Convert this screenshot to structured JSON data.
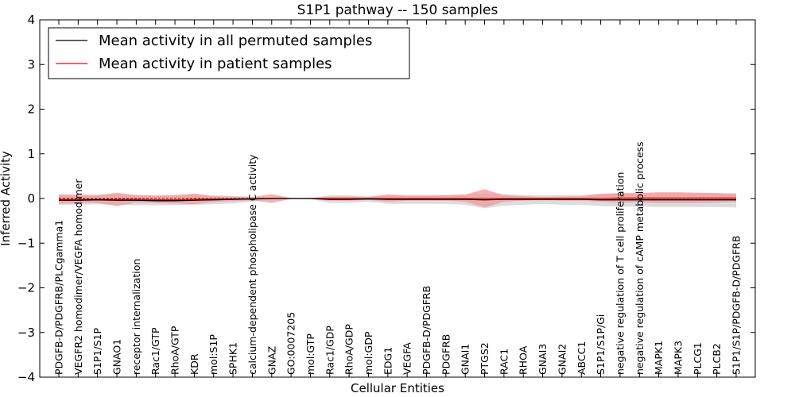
{
  "chart_data": {
    "type": "line",
    "title": "S1P1 pathway -- 150 samples",
    "xlabel": "Cellular Entities",
    "ylabel": "Inferred Activity",
    "ylim": [
      -4,
      4
    ],
    "yticks": [
      -4,
      -3,
      -2,
      -1,
      0,
      1,
      2,
      3,
      4
    ],
    "ytick_labels": [
      "−4",
      "−3",
      "−2",
      "−1",
      "0",
      "1",
      "2",
      "3",
      "4"
    ],
    "grid": false,
    "legend_position": "top-left",
    "categories": [
      "PDGFB-D/PDGFRB/PLCgamma1",
      "VEGFR2 homodimer/VEGFA homodimer",
      "S1P1/S1P",
      "GNAO1",
      "receptor internalization",
      "Rac1/GTP",
      "RhoA/GTP",
      "KDR",
      "mol:S1P",
      "SPHK1",
      "calcium-dependent phospholipase C activity",
      "GNAZ",
      "GO:0007205",
      "mol:GTP",
      "Rac1/GDP",
      "RhoA/GDP",
      "mol:GDP",
      "EDG1",
      "VEGFA",
      "PDGFB-D/PDGFRB",
      "PDGFRB",
      "GNAI1",
      "PTGS2",
      "RAC1",
      "RHOA",
      "GNAI3",
      "GNAI2",
      "ABCC1",
      "S1P1/S1P/Gi",
      "negative regulation of T cell proliferation",
      "negative regulation of cAMP metabolic process",
      "MAPK1",
      "MAPK3",
      "PLCG1",
      "PLCB2",
      "S1P1/S1P/PDGFB-D/PDGFRB"
    ],
    "series": [
      {
        "name": "Mean activity in all permuted samples",
        "color": "#000000",
        "values": [
          -0.04,
          -0.04,
          -0.03,
          -0.04,
          -0.04,
          -0.05,
          -0.05,
          -0.04,
          -0.03,
          -0.02,
          -0.01,
          0.0,
          0.0,
          0.0,
          -0.02,
          -0.02,
          -0.01,
          -0.02,
          -0.02,
          -0.02,
          -0.02,
          -0.02,
          -0.03,
          -0.02,
          -0.02,
          -0.02,
          -0.02,
          -0.02,
          -0.03,
          -0.03,
          -0.03,
          -0.03,
          -0.03,
          -0.03,
          -0.03,
          -0.03
        ],
        "band_lower": [
          -0.14,
          -0.14,
          -0.13,
          -0.14,
          -0.15,
          -0.15,
          -0.15,
          -0.14,
          -0.13,
          -0.11,
          -0.07,
          -0.02,
          -0.01,
          -0.01,
          -0.1,
          -0.1,
          -0.07,
          -0.12,
          -0.12,
          -0.12,
          -0.12,
          -0.14,
          -0.22,
          -0.16,
          -0.14,
          -0.12,
          -0.14,
          -0.14,
          -0.17,
          -0.18,
          -0.18,
          -0.19,
          -0.19,
          -0.19,
          -0.19,
          -0.2
        ],
        "band_upper": [
          0.1,
          0.1,
          0.09,
          0.1,
          0.09,
          0.08,
          0.08,
          0.09,
          0.07,
          0.06,
          0.04,
          0.02,
          0.01,
          0.01,
          0.07,
          0.07,
          0.05,
          0.08,
          0.08,
          0.08,
          0.08,
          0.09,
          0.12,
          0.1,
          0.08,
          0.07,
          0.08,
          0.08,
          0.11,
          0.12,
          0.12,
          0.12,
          0.12,
          0.12,
          0.12,
          0.12
        ],
        "band_color": "#d0d0d0"
      },
      {
        "name": "Mean activity in patient samples",
        "color": "#ff0000",
        "values": [
          -0.02,
          -0.02,
          -0.02,
          -0.02,
          -0.02,
          -0.03,
          -0.03,
          -0.02,
          -0.01,
          -0.01,
          -0.01,
          0.0,
          0.0,
          0.0,
          0.0,
          0.0,
          0.0,
          0.0,
          0.0,
          0.0,
          0.0,
          0.0,
          0.0,
          0.0,
          0.0,
          0.0,
          0.0,
          0.0,
          0.0,
          0.01,
          0.01,
          0.01,
          0.01,
          0.01,
          0.01,
          0.01
        ],
        "band_lower": [
          -0.12,
          -0.1,
          -0.1,
          -0.17,
          -0.09,
          -0.1,
          -0.11,
          -0.13,
          -0.07,
          -0.06,
          -0.04,
          -0.1,
          -0.01,
          -0.01,
          -0.05,
          -0.05,
          -0.03,
          -0.07,
          -0.05,
          -0.05,
          -0.05,
          -0.07,
          -0.2,
          -0.07,
          -0.05,
          -0.04,
          -0.05,
          -0.05,
          -0.07,
          -0.09,
          -0.09,
          -0.1,
          -0.1,
          -0.1,
          -0.09,
          -0.08
        ],
        "band_upper": [
          0.08,
          0.07,
          0.07,
          0.13,
          0.07,
          0.06,
          0.07,
          0.11,
          0.05,
          0.04,
          0.03,
          0.1,
          0.01,
          0.01,
          0.04,
          0.04,
          0.03,
          0.09,
          0.06,
          0.06,
          0.07,
          0.09,
          0.21,
          0.07,
          0.05,
          0.03,
          0.04,
          0.05,
          0.1,
          0.12,
          0.12,
          0.14,
          0.14,
          0.13,
          0.12,
          0.1
        ],
        "band_color": "#f19999"
      }
    ]
  }
}
